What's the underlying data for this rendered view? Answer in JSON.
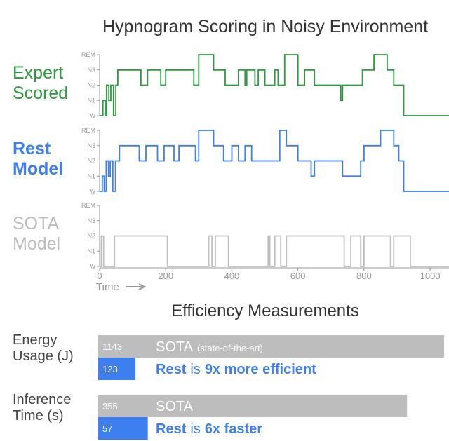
{
  "chart_data": [
    {
      "type": "step",
      "title": "Hypnogram Scoring in Noisy Environment",
      "xlabel": "Time",
      "xlim": [
        0,
        1057
      ],
      "xticks": [
        0,
        200,
        400,
        600,
        800,
        1000
      ],
      "ylim": [
        0,
        4
      ],
      "yticks": [
        {
          "value": 0,
          "label": "W"
        },
        {
          "value": 1,
          "label": "N1"
        },
        {
          "value": 2,
          "label": "N2"
        },
        {
          "value": 3,
          "label": "N3"
        },
        {
          "value": 4,
          "label": "REM"
        }
      ],
      "series": [
        {
          "name": "Expert Scored",
          "color": "#2e9a3f",
          "x": [
            0,
            10,
            17,
            21,
            28,
            34,
            42,
            49,
            55,
            125,
            145,
            185,
            200,
            285,
            300,
            345,
            380,
            420,
            440,
            445,
            470,
            480,
            500,
            530,
            540,
            560,
            600,
            620,
            650,
            730,
            735,
            780,
            795,
            830,
            870,
            890,
            920,
            1057
          ],
          "values": [
            0,
            1,
            0,
            2,
            1,
            2,
            0,
            2,
            3,
            2,
            3,
            2,
            3,
            2,
            4,
            3,
            2,
            3,
            2,
            3,
            2,
            3,
            2,
            3,
            2,
            4,
            2,
            3,
            2,
            1,
            2,
            2,
            3,
            4,
            3,
            2,
            0,
            0
          ]
        },
        {
          "name": "Rest Model",
          "color": "#3d7ef0",
          "x": [
            0,
            8,
            14,
            20,
            27,
            32,
            40,
            48,
            60,
            120,
            140,
            175,
            195,
            225,
            240,
            290,
            300,
            345,
            375,
            400,
            420,
            440,
            460,
            520,
            545,
            565,
            600,
            640,
            650,
            710,
            735,
            790,
            800,
            850,
            890,
            905,
            920,
            1057
          ],
          "values": [
            0,
            1,
            0,
            2,
            1,
            2,
            0,
            2,
            3,
            2,
            3,
            2,
            3,
            2,
            3,
            2,
            4,
            3,
            2,
            3,
            2,
            3,
            2,
            2,
            4,
            3,
            2,
            1,
            2,
            2,
            1,
            2,
            3,
            4,
            3,
            2,
            0,
            0
          ]
        },
        {
          "name": "SOTA Model",
          "color": "#bdbdbd",
          "x": [
            0,
            5,
            12,
            45,
            200,
            205,
            330,
            340,
            350,
            380,
            390,
            510,
            515,
            530,
            548,
            565,
            740,
            760,
            790,
            800,
            880,
            890,
            940,
            1057
          ],
          "values": [
            0,
            2,
            0,
            2,
            2,
            0,
            2,
            0,
            2,
            2,
            0,
            2,
            0,
            2,
            0,
            2,
            0,
            2,
            0,
            2,
            0,
            2,
            0,
            0
          ]
        }
      ]
    },
    {
      "type": "bar",
      "title": "Efficiency Measurements",
      "panels": [
        {
          "label": "Energy Usage (J)",
          "xlim": [
            0,
            1150
          ],
          "values": [
            1143,
            123
          ],
          "colors": [
            "#bdbdbd",
            "#3d7ef0"
          ],
          "annotations": [
            [
              "SOTA",
              "(state-of-the-art)"
            ],
            [
              "Rest",
              "is",
              "9x more efficient"
            ]
          ]
        },
        {
          "label": "Inference Time (s)",
          "xlim": [
            0,
            400
          ],
          "values": [
            355,
            57
          ],
          "colors": [
            "#bdbdbd",
            "#3d7ef0"
          ],
          "annotations": [
            [
              "SOTA"
            ],
            [
              "Rest",
              "is",
              "6x faster"
            ]
          ]
        }
      ]
    }
  ]
}
